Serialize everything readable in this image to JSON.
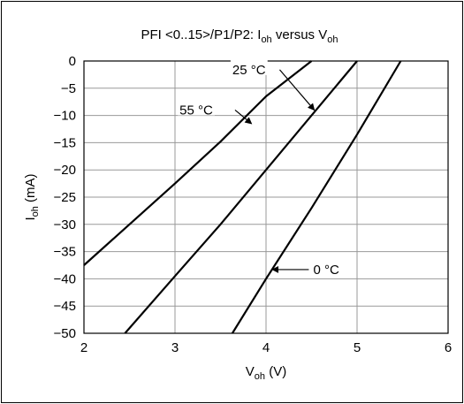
{
  "chart_data": {
    "type": "line",
    "title": {
      "main": "PFI <0..15>/P1/P2: I",
      "sub1": "oh",
      "mid": " versus V",
      "sub2": "oh"
    },
    "xlabel": {
      "main": "V",
      "sub": "oh",
      "unit": " (V)"
    },
    "ylabel": {
      "main": "I",
      "sub": "oh",
      "unit": " (mA)"
    },
    "xlim": [
      2,
      6
    ],
    "ylim": [
      -50,
      0
    ],
    "xticks": [
      2,
      3,
      4,
      5,
      6
    ],
    "yticks": [
      0,
      -5,
      -10,
      -15,
      -20,
      -25,
      -30,
      -35,
      -40,
      -45,
      -50
    ],
    "xtick_labels": [
      "2",
      "3",
      "4",
      "5",
      "6"
    ],
    "ytick_labels": [
      "0",
      "−5",
      "−10",
      "−15",
      "−20",
      "−25",
      "−30",
      "−35",
      "−40",
      "−45",
      "−50"
    ],
    "grid": true,
    "line_color": "#000000",
    "grid_color": "#999999",
    "series": [
      {
        "name": "55 °C",
        "x": [
          2.0,
          2.5,
          3.0,
          3.5,
          4.0,
          4.5
        ],
        "y": [
          -37.5,
          -30.0,
          -22.5,
          -14.8,
          -6.5,
          0.0
        ]
      },
      {
        "name": "25 °C",
        "x": [
          2.45,
          3.0,
          3.5,
          4.0,
          4.5,
          5.0
        ],
        "y": [
          -50.0,
          -39.5,
          -30.0,
          -20.0,
          -10.0,
          0.0
        ]
      },
      {
        "name": "0 °C",
        "x": [
          3.63,
          4.0,
          4.5,
          5.0,
          5.48
        ],
        "y": [
          -50.0,
          -40.0,
          -27.0,
          -13.5,
          0.0
        ]
      }
    ],
    "annotations": [
      {
        "text": "25 °C",
        "series": "25 °C",
        "arrow_from": [
          4.15,
          -1.6
        ],
        "arrow_to": [
          4.53,
          -9.0
        ],
        "text_at": [
          3.63,
          -1.6
        ]
      },
      {
        "text": "55 °C",
        "series": "55 °C",
        "arrow_from": [
          3.66,
          -9.0
        ],
        "arrow_to": [
          3.84,
          -11.5
        ],
        "text_at": [
          3.05,
          -9.0
        ]
      },
      {
        "text": "0 °C",
        "series": "0 °C",
        "arrow_from": [
          4.47,
          -38.3
        ],
        "arrow_to": [
          4.07,
          -38.3
        ],
        "text_at": [
          4.52,
          -38.3
        ]
      }
    ]
  }
}
